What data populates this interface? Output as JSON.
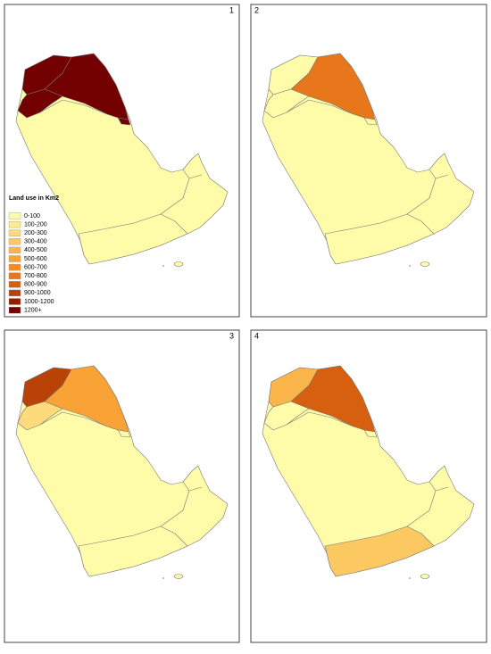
{
  "panels": [
    {
      "label": "1"
    },
    {
      "label": "2"
    },
    {
      "label": "3"
    },
    {
      "label": "4"
    }
  ],
  "legend": {
    "title": "Land use in Km2",
    "items": [
      {
        "label": "0-100",
        "color": "#fefca8"
      },
      {
        "label": "100-200",
        "color": "#fdeb8e"
      },
      {
        "label": "200-300",
        "color": "#fddb7c"
      },
      {
        "label": "300-400",
        "color": "#fcc862"
      },
      {
        "label": "400-500",
        "color": "#fbb54a"
      },
      {
        "label": "500-600",
        "color": "#f9a236"
      },
      {
        "label": "600-700",
        "color": "#f58c22"
      },
      {
        "label": "700-800",
        "color": "#e8761a"
      },
      {
        "label": "800-900",
        "color": "#d65f10"
      },
      {
        "label": "900-1000",
        "color": "#b94207"
      },
      {
        "label": "1000-1200",
        "color": "#922000"
      },
      {
        "label": "1200+",
        "color": "#720000"
      }
    ]
  }
}
